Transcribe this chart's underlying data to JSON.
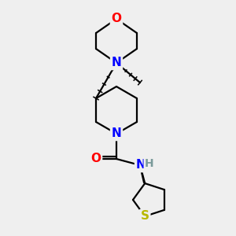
{
  "bg_color": "#efefef",
  "atom_colors": {
    "O": "#ff0000",
    "N": "#0000ff",
    "S": "#b8b800",
    "H": "#7a9a9a"
  },
  "bond_color": "#000000",
  "bond_width": 1.6,
  "bg_hex": "#efefef"
}
